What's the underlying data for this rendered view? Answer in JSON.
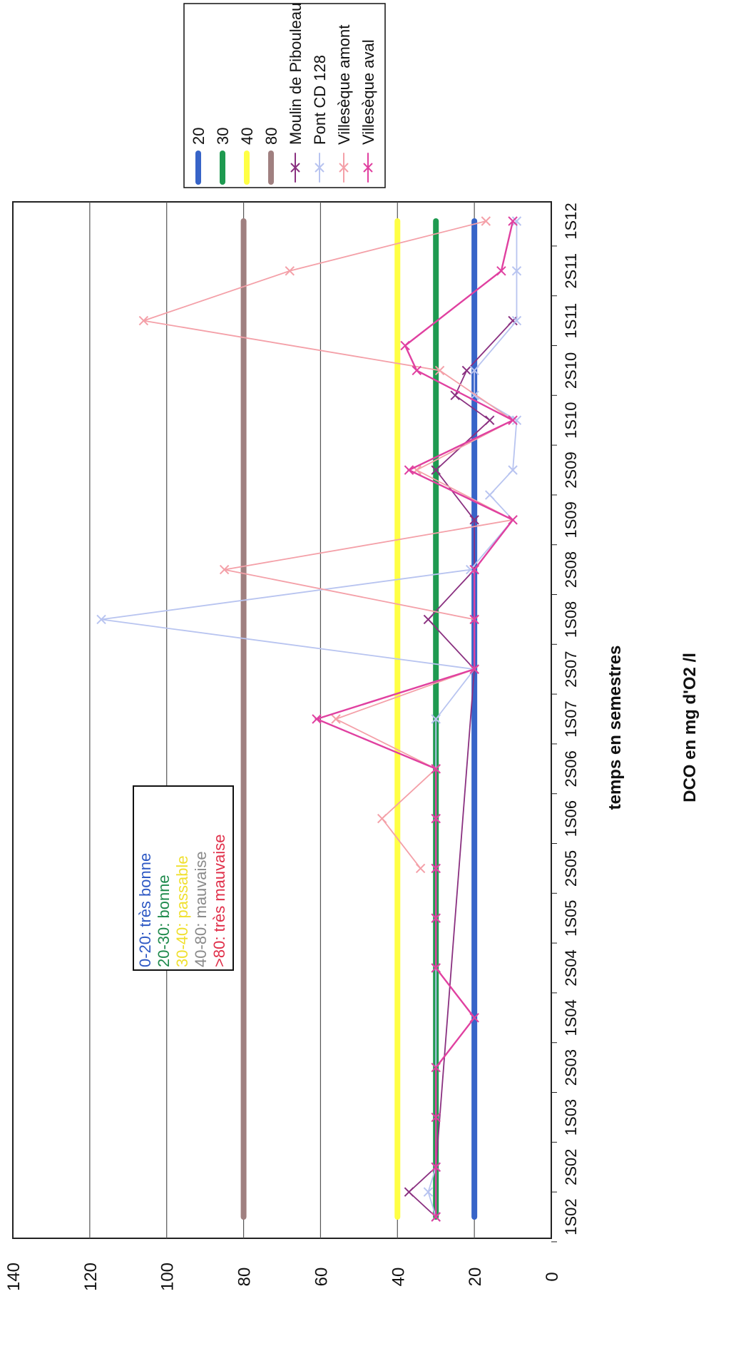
{
  "chart_data": {
    "type": "line",
    "ylabel": "DCO en mg d'O2 /l",
    "xlabel": "temps en semestres",
    "ylim": [
      0,
      140
    ],
    "yticks": [
      0,
      20,
      40,
      60,
      80,
      100,
      120,
      140
    ],
    "grid": true,
    "legend_position": "top-right",
    "categories": [
      "1S02",
      "2S02",
      "1S03",
      "2S03",
      "1S04",
      "2S04",
      "1S05",
      "2S05",
      "1S06",
      "2S06",
      "1S07",
      "2S07",
      "1S08",
      "2S08",
      "1S09",
      "2S09",
      "1S10",
      "2S10",
      "1S11",
      "2S11",
      "1S12"
    ],
    "quality_legend": [
      {
        "text": "0-20: très bonne",
        "color": "#2e59c4"
      },
      {
        "text": "20-30: bonne",
        "color": "#1e8a4c"
      },
      {
        "text": "30-40: passable",
        "color": "#f0e030"
      },
      {
        "text": "40-80: mauvaise",
        "color": "#8a8a8a"
      },
      {
        "text": ">80: très mauvaise",
        "color": "#e0304a"
      }
    ],
    "threshold_series": [
      {
        "name": "20",
        "value": 20,
        "color": "#3764c8"
      },
      {
        "name": "30",
        "value": 30,
        "color": "#1e9a50"
      },
      {
        "name": "40",
        "value": 40,
        "color": "#ffff44"
      },
      {
        "name": "80",
        "value": 80,
        "color": "#a08080"
      }
    ],
    "series": [
      {
        "name": "Moulin de Pibouleau",
        "color": "#8a3080",
        "values": [
          [
            0,
            30
          ],
          [
            0.5,
            37
          ],
          [
            1,
            30
          ],
          [
            11,
            20
          ],
          [
            12,
            32
          ],
          [
            13,
            20
          ],
          [
            14,
            20
          ],
          [
            15,
            30
          ],
          [
            16,
            16
          ],
          [
            16.5,
            25
          ],
          [
            17,
            22
          ],
          [
            18,
            10
          ]
        ]
      },
      {
        "name": "Pont CD 128",
        "color": "#b8c4f0",
        "values": [
          [
            0,
            30
          ],
          [
            0.5,
            32
          ],
          [
            1,
            30
          ],
          [
            5,
            30
          ],
          [
            6,
            30
          ],
          [
            7,
            30
          ],
          [
            8,
            30
          ],
          [
            9,
            30
          ],
          [
            10,
            30
          ],
          [
            11,
            20
          ],
          [
            12,
            117
          ],
          [
            13,
            21
          ],
          [
            14,
            10
          ],
          [
            14.5,
            16
          ],
          [
            15,
            10
          ],
          [
            16,
            9
          ],
          [
            16.5,
            20
          ],
          [
            17,
            20
          ],
          [
            18,
            9
          ],
          [
            19,
            9
          ],
          [
            20,
            9
          ]
        ]
      },
      {
        "name": "Villesèque amont",
        "color": "#f4a0a8",
        "values": [
          [
            7,
            34
          ],
          [
            8,
            44
          ],
          [
            9,
            30
          ],
          [
            10,
            56
          ],
          [
            11,
            20
          ],
          [
            12,
            20
          ],
          [
            13,
            85
          ],
          [
            14,
            10
          ],
          [
            15,
            35
          ],
          [
            16,
            10
          ],
          [
            17,
            29
          ],
          [
            18,
            106
          ],
          [
            19,
            68
          ],
          [
            20,
            17
          ]
        ]
      },
      {
        "name": "Villesèque aval",
        "color": "#e040a0",
        "values": [
          [
            0,
            30
          ],
          [
            1,
            30
          ],
          [
            2,
            30
          ],
          [
            3,
            30
          ],
          [
            4,
            20
          ],
          [
            5,
            30
          ],
          [
            6,
            30
          ],
          [
            7,
            30
          ],
          [
            8,
            30
          ],
          [
            9,
            30
          ],
          [
            10,
            61
          ],
          [
            11,
            20
          ],
          [
            12,
            20
          ],
          [
            13,
            20
          ],
          [
            14,
            10
          ],
          [
            15,
            37
          ],
          [
            16,
            10
          ],
          [
            17,
            35
          ],
          [
            17.5,
            38
          ],
          [
            19,
            13
          ],
          [
            20,
            10
          ]
        ]
      }
    ]
  }
}
